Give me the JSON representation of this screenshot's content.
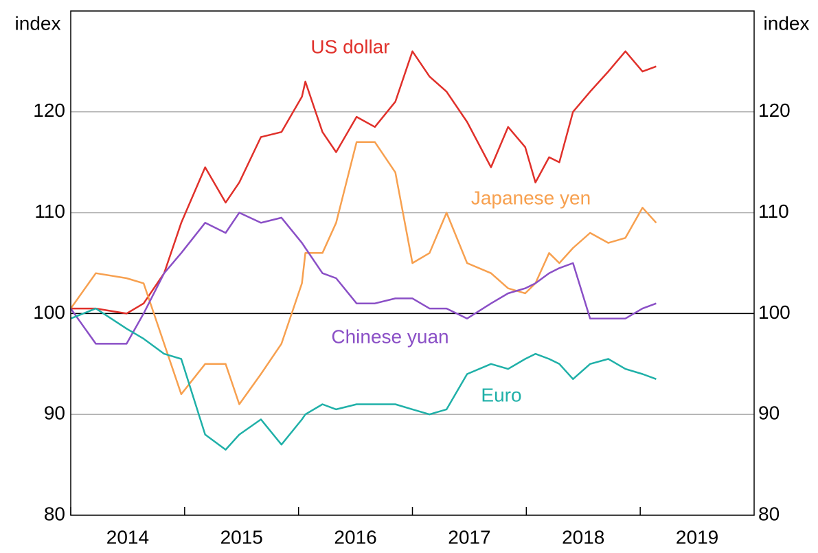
{
  "chart_data": {
    "type": "line",
    "y_label": "index",
    "x": [
      2014.0,
      2014.22,
      2014.49,
      2014.64,
      2014.82,
      2014.97,
      2015.18,
      2015.36,
      2015.48,
      2015.67,
      2015.85,
      2016.03,
      2016.06,
      2016.21,
      2016.33,
      2016.51,
      2016.67,
      2016.85,
      2017.0,
      2017.15,
      2017.3,
      2017.48,
      2017.69,
      2017.84,
      2017.99,
      2018.08,
      2018.2,
      2018.29,
      2018.41,
      2018.56,
      2018.72,
      2018.87,
      2019.02,
      2019.14
    ],
    "series": [
      {
        "name": "US dollar",
        "color": "#e0302a",
        "values": [
          100.5,
          100.5,
          100,
          101,
          104,
          109,
          114.5,
          111,
          113,
          117.5,
          118,
          121.5,
          123,
          118,
          116,
          119.5,
          118.5,
          121,
          126,
          123.5,
          122,
          119,
          114.5,
          118.5,
          116.5,
          113,
          115.5,
          115,
          120,
          122,
          124,
          126,
          124,
          124.5
        ]
      },
      {
        "name": "Japanese yen",
        "color": "#f7a04f",
        "values": [
          100.5,
          104,
          103.5,
          103,
          97,
          92,
          95,
          95,
          91,
          94,
          97,
          103,
          106,
          106,
          109,
          117,
          117,
          114,
          105,
          106,
          110,
          105,
          104,
          102.5,
          102,
          103,
          106,
          105,
          106.5,
          108,
          107,
          107.5,
          110.5,
          109
        ]
      },
      {
        "name": "Chinese yuan",
        "color": "#8a4fc6",
        "values": [
          100.5,
          97,
          97,
          100,
          104,
          106,
          109,
          108,
          110,
          109,
          109.5,
          107,
          106.5,
          104,
          103.5,
          101,
          101,
          101.5,
          101.5,
          100.5,
          100.5,
          99.5,
          101,
          102,
          102.5,
          103,
          104,
          104.5,
          105,
          99.5,
          99.5,
          99.5,
          100.5,
          101
        ]
      },
      {
        "name": "Euro",
        "color": "#1fb0a8",
        "values": [
          99.5,
          100.5,
          98.5,
          97.5,
          96,
          95.5,
          88,
          86.5,
          88,
          89.5,
          87,
          89.5,
          90,
          91,
          90.5,
          91,
          91,
          91,
          90.5,
          90,
          90.5,
          94,
          95,
          94.5,
          95.5,
          96,
          95.5,
          95,
          93.5,
          95,
          95.5,
          94.5,
          94,
          93.5
        ]
      }
    ],
    "xlim": [
      2014,
      2020
    ],
    "xticks": [
      2014,
      2015,
      2016,
      2017,
      2018,
      2019
    ],
    "ylim": [
      80,
      130
    ],
    "yticks": [
      80,
      90,
      100,
      110,
      120
    ],
    "baseline": 100,
    "grid": true
  }
}
